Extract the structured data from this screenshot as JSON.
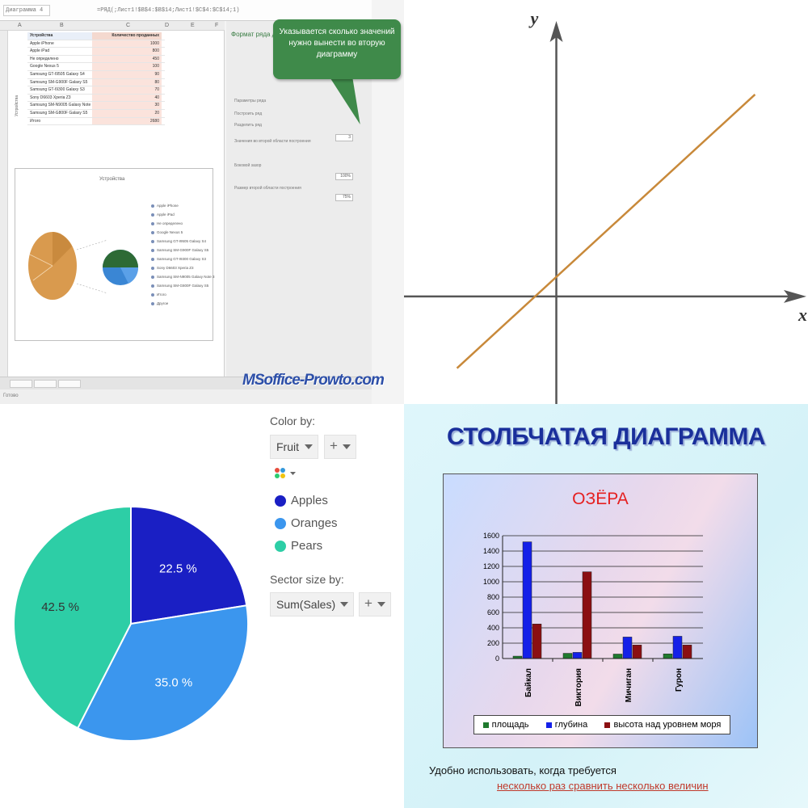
{
  "excel": {
    "name_box": "Диаграмма 4",
    "formula": "=РЯД(;Лист1!$B$4:$B$14;Лист1!$C$4:$C$14;1)",
    "columns": [
      "A",
      "B",
      "C",
      "D",
      "E",
      "F"
    ],
    "table_header": [
      "Устройства",
      "Количество проданных"
    ],
    "rows": [
      {
        "name": "Apple iPhone",
        "value": "1000"
      },
      {
        "name": "Apple iPad",
        "value": "800"
      },
      {
        "name": "Не определено",
        "value": "450"
      },
      {
        "name": "Google Nexus 5",
        "value": "100"
      },
      {
        "name": "Samsung GT-I9505 Galaxy S4",
        "value": "90"
      },
      {
        "name": "Samsung SM-G900F Galaxy S5",
        "value": "80"
      },
      {
        "name": "Samsung GT-I9300 Galaxy S3",
        "value": "70"
      },
      {
        "name": "Sony D6603 Xperia Z3",
        "value": "40"
      },
      {
        "name": "Samsung SM-N9005 Galaxy Note 3",
        "value": "30"
      },
      {
        "name": "Samsung SM-G800F Galaxy S5",
        "value": "20"
      },
      {
        "name": "Итого",
        "value": "2680"
      }
    ],
    "side_label": "Устройства",
    "chart_title": "Устройства",
    "legend": [
      "Apple iPhone",
      "Apple iPad",
      "Не определено",
      "Google Nexus 5",
      "Samsung GT-I9505 Galaxy S4",
      "Samsung SM-G900F Galaxy S5",
      "Samsung GT-I9300 Galaxy S3",
      "Sony D6603 Xperia Z3",
      "Samsung SM-N9005 Galaxy Note 3",
      "Samsung SM-G800F Galaxy S5",
      "Итого",
      "Другое"
    ],
    "panel_title": "Формат ряда данных",
    "panel_lines": [
      "Параметры ряда",
      "Построить ряд",
      "Разделить ряд",
      "Значения во второй области построения",
      "Боковой зазор",
      "Размер второй области построения"
    ],
    "panel_values": [
      "3",
      "100%",
      "75%"
    ],
    "callout": "Указывается сколько значений нужно вынести во вторую диаграмму",
    "watermark": "MSoffice-Prowto.com",
    "status": "Готово"
  },
  "line_chart": {
    "chart_data": {
      "type": "line",
      "xlabel": "x",
      "ylabel": "y",
      "series": [
        {
          "x": [
            -3,
            6
          ],
          "y": [
            -2.2,
            6.2
          ]
        }
      ],
      "xlim": [
        -4.6,
        7.6
      ],
      "ylim": [
        -3.3,
        9.1
      ],
      "grid": false,
      "line_color": "#c8893a",
      "axis_color": "#555555"
    }
  },
  "pie": {
    "color_by_label": "Color by:",
    "color_by_value": "Fruit",
    "sector_size_label": "Sector size by:",
    "sector_size_value": "Sum(Sales)",
    "plus": "+",
    "chart_data": {
      "type": "pie",
      "categories": [
        "Apples",
        "Oranges",
        "Pears"
      ],
      "values": [
        22.5,
        35.0,
        42.5
      ],
      "labels": [
        "22.5 %",
        "35.0 %",
        "42.5 %"
      ],
      "colors": [
        "#1a1fc4",
        "#3b96ee",
        "#2dcea6"
      ]
    }
  },
  "bars": {
    "heading": "СТОЛБЧАТАЯ ДИАГРАММА",
    "caption_line1": "Удобно использовать, когда требуется",
    "caption_line2": "несколько раз сравнить несколько величин",
    "chart_data": {
      "type": "bar",
      "title": "ОЗЁРА",
      "categories": [
        "Байкал",
        "Виктория",
        "Мичиган",
        "Гурон"
      ],
      "series": [
        {
          "name": "площадь",
          "values": [
            31,
            68,
            58,
            60
          ],
          "color": "#1f7a2e"
        },
        {
          "name": "глубина",
          "values": [
            1520,
            80,
            280,
            290
          ],
          "color": "#1420e8"
        },
        {
          "name": "высота над уровнем моря",
          "values": [
            450,
            1130,
            176,
            176
          ],
          "color": "#8b0f12"
        }
      ],
      "ylim": [
        0,
        1600
      ],
      "yticks": [
        0,
        200,
        400,
        600,
        800,
        1000,
        1200,
        1400,
        1600
      ],
      "grid": true,
      "legend_position": "bottom"
    }
  }
}
